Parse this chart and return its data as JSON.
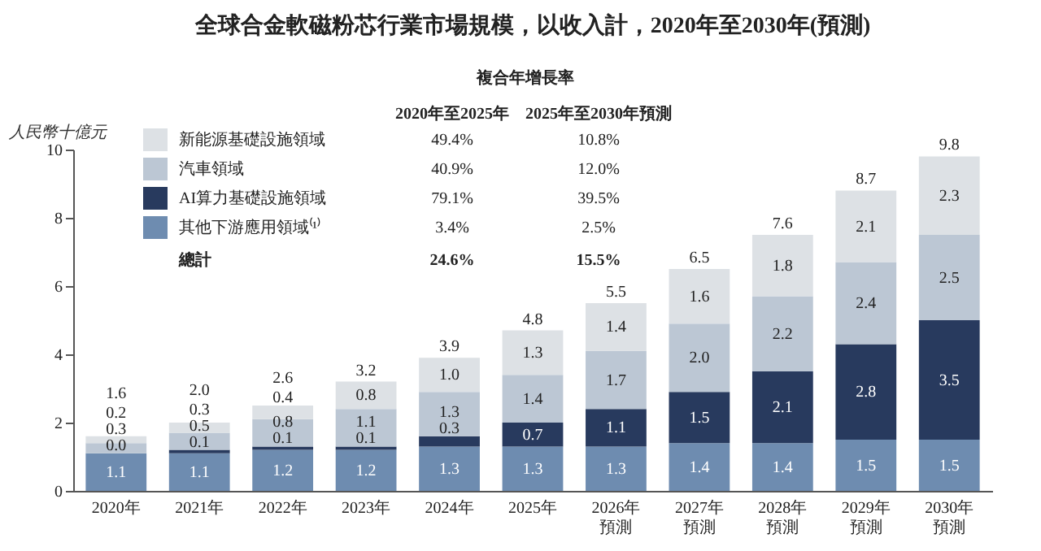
{
  "chart_data": {
    "type": "bar",
    "title": "全球合金軟磁粉芯行業市場規模，以收入計，2020年至2030年(預測)",
    "ylabel": "人民幣十億元",
    "categories": [
      "2020年",
      "2021年",
      "2022年",
      "2023年",
      "2024年",
      "2025年",
      "2026年預測",
      "2027年預測",
      "2028年預測",
      "2029年預測",
      "2030年預測"
    ],
    "stacked": true,
    "legend": "top left",
    "series": [
      {
        "name": "其他下游應用領域⁽¹⁾",
        "color": "#6e8cb0",
        "values": [
          1.1,
          1.1,
          1.2,
          1.2,
          1.3,
          1.3,
          1.3,
          1.4,
          1.4,
          1.5,
          1.5
        ],
        "value_labels": [
          "1.1",
          "1.1",
          "1.2",
          "1.2",
          "1.3",
          "1.3",
          "1.3",
          "1.4",
          "1.4",
          "1.5",
          "1.5"
        ]
      },
      {
        "name": "AI算力基礎設施領域",
        "color": "#283a5e",
        "values": [
          0.0,
          0.1,
          0.1,
          0.1,
          0.3,
          0.7,
          1.1,
          1.5,
          2.1,
          2.8,
          3.5
        ],
        "value_labels": [
          "0.0",
          "0.1",
          "0.1",
          "0.1",
          "0.3",
          "0.7",
          "1.1",
          "1.5",
          "2.1",
          "2.8",
          "3.5"
        ]
      },
      {
        "name": "汽車領域",
        "color": "#bcc7d4",
        "values": [
          0.3,
          0.5,
          0.8,
          1.1,
          1.3,
          1.4,
          1.7,
          2.0,
          2.2,
          2.4,
          2.5
        ],
        "value_labels": [
          "0.3",
          "0.5",
          "0.8",
          "1.1",
          "1.3",
          "1.4",
          "1.7",
          "2.0",
          "2.2",
          "2.4",
          "2.5"
        ]
      },
      {
        "name": "新能源基礎設施領域",
        "color": "#dde1e5",
        "values": [
          0.2,
          0.3,
          0.4,
          0.8,
          1.0,
          1.3,
          1.4,
          1.6,
          1.8,
          2.1,
          2.3
        ],
        "value_labels": [
          "0.2",
          "0.3",
          "0.4",
          "0.8",
          "1.0",
          "1.3",
          "1.4",
          "1.6",
          "1.8",
          "2.1",
          "2.3"
        ]
      }
    ],
    "totals": [
      "1.6",
      "2.0",
      "2.6",
      "3.2",
      "3.9",
      "4.8",
      "5.5",
      "6.5",
      "7.6",
      "8.7",
      "9.8"
    ],
    "ylim": [
      0,
      10
    ],
    "yticks": [
      0,
      2,
      4,
      6,
      8,
      10
    ],
    "annotations": [
      "複合年增長率",
      "2020年至2025年",
      "2025年至2030年預測",
      "49.4%",
      "10.8%",
      "40.9%",
      "12.0%",
      "79.1%",
      "39.5%",
      "3.4%",
      "2.5%",
      "總計",
      "24.6%",
      "15.5%"
    ]
  }
}
